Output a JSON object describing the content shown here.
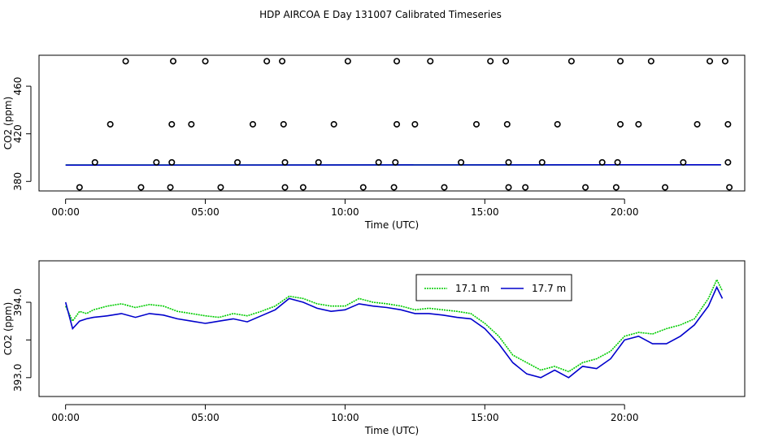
{
  "figure": {
    "title": "HDP AIRCOA E  Day 131007  Calibrated Timeseries"
  },
  "chart_data": [
    {
      "type": "scatter",
      "xlabel": "Time (UTC)",
      "ylabel": "CO2 (ppm)",
      "xlim": [
        -0.95,
        24.3
      ],
      "ylim": [
        372,
        486
      ],
      "x_ticks": [
        0,
        5,
        10,
        15,
        20
      ],
      "x_tick_labels": [
        "00:00",
        "05:00",
        "10:00",
        "15:00",
        "20:00"
      ],
      "y_ticks": [
        380,
        420,
        460
      ],
      "y_tick_labels": [
        "380",
        "420",
        "460"
      ],
      "grid": false,
      "points": [
        {
          "x": 2.15,
          "y": 481
        },
        {
          "x": 3.85,
          "y": 481
        },
        {
          "x": 5.0,
          "y": 481
        },
        {
          "x": 7.2,
          "y": 481
        },
        {
          "x": 7.75,
          "y": 481
        },
        {
          "x": 10.1,
          "y": 481
        },
        {
          "x": 11.85,
          "y": 481
        },
        {
          "x": 13.05,
          "y": 481
        },
        {
          "x": 15.2,
          "y": 481
        },
        {
          "x": 15.75,
          "y": 481
        },
        {
          "x": 18.1,
          "y": 481
        },
        {
          "x": 19.85,
          "y": 481
        },
        {
          "x": 20.95,
          "y": 481
        },
        {
          "x": 23.05,
          "y": 481
        },
        {
          "x": 23.6,
          "y": 481
        },
        {
          "x": 1.6,
          "y": 428
        },
        {
          "x": 3.8,
          "y": 428
        },
        {
          "x": 4.5,
          "y": 428
        },
        {
          "x": 6.7,
          "y": 428
        },
        {
          "x": 7.8,
          "y": 428
        },
        {
          "x": 9.6,
          "y": 428
        },
        {
          "x": 11.85,
          "y": 428
        },
        {
          "x": 12.5,
          "y": 428
        },
        {
          "x": 14.7,
          "y": 428
        },
        {
          "x": 15.8,
          "y": 428
        },
        {
          "x": 17.6,
          "y": 428
        },
        {
          "x": 19.85,
          "y": 428
        },
        {
          "x": 20.5,
          "y": 428
        },
        {
          "x": 22.6,
          "y": 428
        },
        {
          "x": 23.7,
          "y": 428
        },
        {
          "x": 1.05,
          "y": 396
        },
        {
          "x": 3.25,
          "y": 396
        },
        {
          "x": 3.8,
          "y": 396
        },
        {
          "x": 6.15,
          "y": 396
        },
        {
          "x": 7.85,
          "y": 396
        },
        {
          "x": 9.05,
          "y": 396
        },
        {
          "x": 11.2,
          "y": 396
        },
        {
          "x": 11.8,
          "y": 396
        },
        {
          "x": 14.15,
          "y": 396
        },
        {
          "x": 15.85,
          "y": 396
        },
        {
          "x": 17.05,
          "y": 396
        },
        {
          "x": 19.2,
          "y": 396
        },
        {
          "x": 19.75,
          "y": 396
        },
        {
          "x": 22.1,
          "y": 396
        },
        {
          "x": 23.7,
          "y": 396
        },
        {
          "x": 0.5,
          "y": 375
        },
        {
          "x": 2.7,
          "y": 375
        },
        {
          "x": 3.75,
          "y": 375
        },
        {
          "x": 5.55,
          "y": 375
        },
        {
          "x": 7.85,
          "y": 375
        },
        {
          "x": 8.5,
          "y": 375
        },
        {
          "x": 10.65,
          "y": 375
        },
        {
          "x": 11.75,
          "y": 375
        },
        {
          "x": 13.55,
          "y": 375
        },
        {
          "x": 15.85,
          "y": 375
        },
        {
          "x": 16.45,
          "y": 375
        },
        {
          "x": 18.6,
          "y": 375
        },
        {
          "x": 19.7,
          "y": 375
        },
        {
          "x": 21.45,
          "y": 375
        },
        {
          "x": 23.75,
          "y": 375
        }
      ],
      "series": [
        {
          "color": "#00cc00",
          "x": [
            0,
            23.45
          ],
          "values": [
            393.8,
            394.0
          ]
        },
        {
          "color": "#0000cc",
          "x": [
            0,
            23.45
          ],
          "values": [
            393.7,
            394.0
          ]
        }
      ]
    },
    {
      "type": "line",
      "xlabel": "Time (UTC)",
      "ylabel": "CO2 (ppm)",
      "xlim": [
        -0.95,
        24.3
      ],
      "ylim": [
        392.75,
        394.55
      ],
      "x_ticks": [
        0,
        5,
        10,
        15,
        20
      ],
      "x_tick_labels": [
        "00:00",
        "05:00",
        "10:00",
        "15:00",
        "20:00"
      ],
      "y_ticks": [
        393.0,
        393.5,
        394.0
      ],
      "y_tick_labels": [
        "393.0",
        "",
        "394.0"
      ],
      "grid": false,
      "legend": "top-center",
      "series": [
        {
          "name": "17.1 m",
          "color": "#00cc00",
          "style": "dotted",
          "x": [
            0,
            0.25,
            0.5,
            0.75,
            1.0,
            1.5,
            2.0,
            2.5,
            3.0,
            3.5,
            4.0,
            4.5,
            5.0,
            5.5,
            6.0,
            6.5,
            7.0,
            7.5,
            8.0,
            8.5,
            9.0,
            9.5,
            10.0,
            10.5,
            11.0,
            11.5,
            12.0,
            12.5,
            13.0,
            13.5,
            14.0,
            14.5,
            15.0,
            15.5,
            16.0,
            16.5,
            17.0,
            17.5,
            18.0,
            18.5,
            19.0,
            19.5,
            20.0,
            20.5,
            21.0,
            21.5,
            22.0,
            22.5,
            23.0,
            23.3,
            23.5
          ],
          "values": [
            393.95,
            393.75,
            393.88,
            393.85,
            393.9,
            393.95,
            393.98,
            393.93,
            393.97,
            393.95,
            393.88,
            393.85,
            393.82,
            393.8,
            393.85,
            393.82,
            393.88,
            393.95,
            394.08,
            394.05,
            393.98,
            393.95,
            393.95,
            394.05,
            394.0,
            393.98,
            393.95,
            393.9,
            393.92,
            393.9,
            393.88,
            393.85,
            393.72,
            393.55,
            393.3,
            393.2,
            393.1,
            393.15,
            393.08,
            393.2,
            393.25,
            393.35,
            393.55,
            393.6,
            393.58,
            393.65,
            393.7,
            393.78,
            394.05,
            394.3,
            394.15
          ]
        },
        {
          "name": "17.7 m",
          "color": "#0000cc",
          "style": "solid",
          "x": [
            0,
            0.25,
            0.5,
            0.75,
            1.0,
            1.5,
            2.0,
            2.5,
            3.0,
            3.5,
            4.0,
            4.5,
            5.0,
            5.5,
            6.0,
            6.5,
            7.0,
            7.5,
            8.0,
            8.5,
            9.0,
            9.5,
            10.0,
            10.5,
            11.0,
            11.5,
            12.0,
            12.5,
            13.0,
            13.5,
            14.0,
            14.5,
            15.0,
            15.5,
            16.0,
            16.5,
            17.0,
            17.5,
            18.0,
            18.5,
            19.0,
            19.5,
            20.0,
            20.5,
            21.0,
            21.5,
            22.0,
            22.5,
            23.0,
            23.3,
            23.5
          ],
          "values": [
            394.0,
            393.65,
            393.75,
            393.78,
            393.8,
            393.82,
            393.85,
            393.8,
            393.85,
            393.83,
            393.78,
            393.75,
            393.72,
            393.75,
            393.78,
            393.74,
            393.82,
            393.9,
            394.05,
            394.0,
            393.92,
            393.88,
            393.9,
            393.98,
            393.95,
            393.93,
            393.9,
            393.85,
            393.85,
            393.83,
            393.8,
            393.78,
            393.65,
            393.45,
            393.2,
            393.05,
            393.0,
            393.1,
            393.0,
            393.15,
            393.12,
            393.25,
            393.5,
            393.55,
            393.45,
            393.45,
            393.55,
            393.7,
            393.95,
            394.2,
            394.05
          ]
        }
      ]
    }
  ]
}
